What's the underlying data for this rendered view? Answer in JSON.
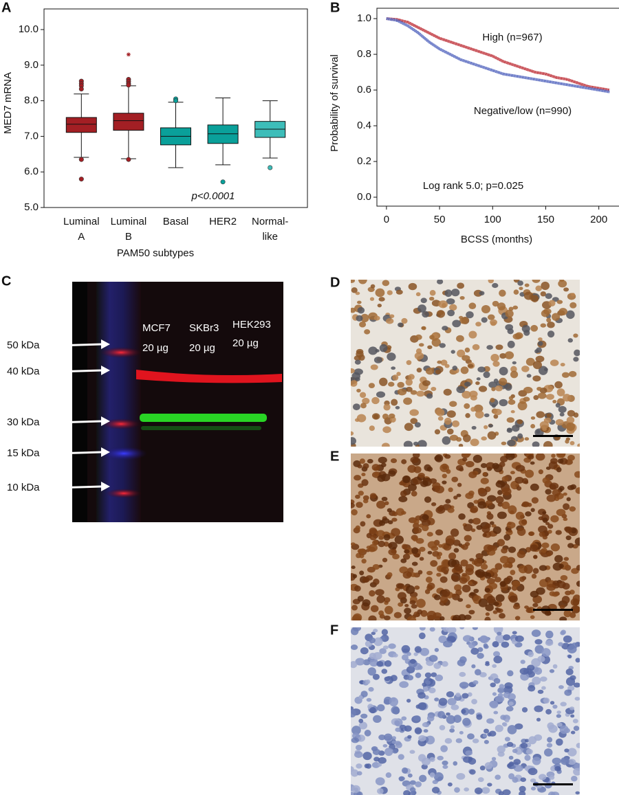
{
  "chart_data": [
    {
      "type": "box",
      "label": "A",
      "ylabel": "MED7 mRNA",
      "xlabel": "PAM50 subtypes",
      "annotation": "p<0.0001",
      "categories": [
        [
          "Luminal",
          "A"
        ],
        [
          "Luminal",
          "B"
        ],
        [
          "Basal"
        ],
        [
          "HER2"
        ],
        [
          "Normal-",
          "like"
        ]
      ],
      "ylim": [
        5.0,
        10.58
      ],
      "yticks": [
        {
          "value": 5,
          "label": "5.0"
        },
        {
          "value": 6,
          "label": "6.0"
        },
        {
          "value": 7,
          "label": "7.0"
        },
        {
          "value": 8,
          "label": "8.0"
        },
        {
          "value": 9,
          "label": "9.0"
        },
        {
          "value": 10,
          "label": "10.0"
        }
      ],
      "boxes": [
        {
          "color": "#a31f24",
          "whislo": 6.41,
          "q1": 7.11,
          "median": 7.34,
          "q3": 7.53,
          "whishi": 8.19,
          "outliers": [
            8.55,
            8.48,
            8.42,
            8.33,
            6.35,
            5.8
          ],
          "extremes": []
        },
        {
          "color": "#a31f24",
          "whislo": 6.37,
          "q1": 7.17,
          "median": 7.44,
          "q3": 7.65,
          "whishi": 8.42,
          "outliers": [
            8.6,
            8.54,
            8.48,
            8.44,
            6.35
          ],
          "extremes": [
            9.3
          ]
        },
        {
          "color": "#0aa09a",
          "whislo": 6.12,
          "q1": 6.76,
          "median": 7.0,
          "q3": 7.24,
          "whishi": 7.96,
          "outliers": [
            8.05,
            8.0
          ],
          "extremes": []
        },
        {
          "color": "#0aa09a",
          "whislo": 6.2,
          "q1": 6.8,
          "median": 7.07,
          "q3": 7.32,
          "whishi": 8.08,
          "outliers": [
            5.72
          ],
          "extremes": []
        },
        {
          "color": "#3dbdb9",
          "whislo": 6.39,
          "q1": 6.97,
          "median": 7.2,
          "q3": 7.42,
          "whishi": 8.0,
          "outliers": [
            6.12
          ],
          "extremes": []
        }
      ]
    },
    {
      "type": "line",
      "label": "B",
      "ylabel": "Probability of survival",
      "xlabel": "BCSS (months)",
      "annotations": [
        "High (n=967)",
        "Negative/low (n=990)",
        "Log rank 5.0; p=0.025"
      ],
      "xlim": [
        -9,
        219
      ],
      "ylim": [
        -0.05,
        1.058
      ],
      "xticks": [
        0,
        50,
        100,
        150,
        200
      ],
      "yticks": [
        {
          "value": 0,
          "label": "0.0"
        },
        0.2,
        0.4,
        0.6,
        0.8,
        {
          "value": 1,
          "label": "1.0"
        }
      ],
      "x": [
        0,
        10,
        20,
        30,
        40,
        50,
        60,
        70,
        80,
        90,
        100,
        110,
        120,
        130,
        140,
        150,
        160,
        170,
        180,
        190,
        200,
        210
      ],
      "series": [
        {
          "color": "#b5121b",
          "values": [
            1.0,
            0.995,
            0.98,
            0.95,
            0.92,
            0.89,
            0.87,
            0.85,
            0.83,
            0.81,
            0.79,
            0.76,
            0.74,
            0.72,
            0.7,
            0.69,
            0.67,
            0.66,
            0.64,
            0.62,
            0.61,
            0.6
          ]
        },
        {
          "color": "#3a4fb5",
          "values": [
            1.0,
            0.99,
            0.96,
            0.92,
            0.87,
            0.83,
            0.8,
            0.77,
            0.75,
            0.73,
            0.71,
            0.69,
            0.68,
            0.67,
            0.66,
            0.65,
            0.64,
            0.63,
            0.62,
            0.61,
            0.6,
            0.59
          ]
        }
      ]
    }
  ],
  "western_blot": {
    "label": "C",
    "lanes": [
      {
        "name": "MCF7",
        "amount": "20 µg"
      },
      {
        "name": "SKBr3",
        "amount": "20 µg"
      },
      {
        "name": "HEK293",
        "amount": "20 µg"
      }
    ],
    "markers": [
      "50 kDa",
      "40 kDa",
      "30 kDa",
      "15 kDa",
      "10 kDa"
    ]
  },
  "ihc_panels": [
    {
      "label": "D"
    },
    {
      "label": "E"
    },
    {
      "label": "F"
    }
  ]
}
